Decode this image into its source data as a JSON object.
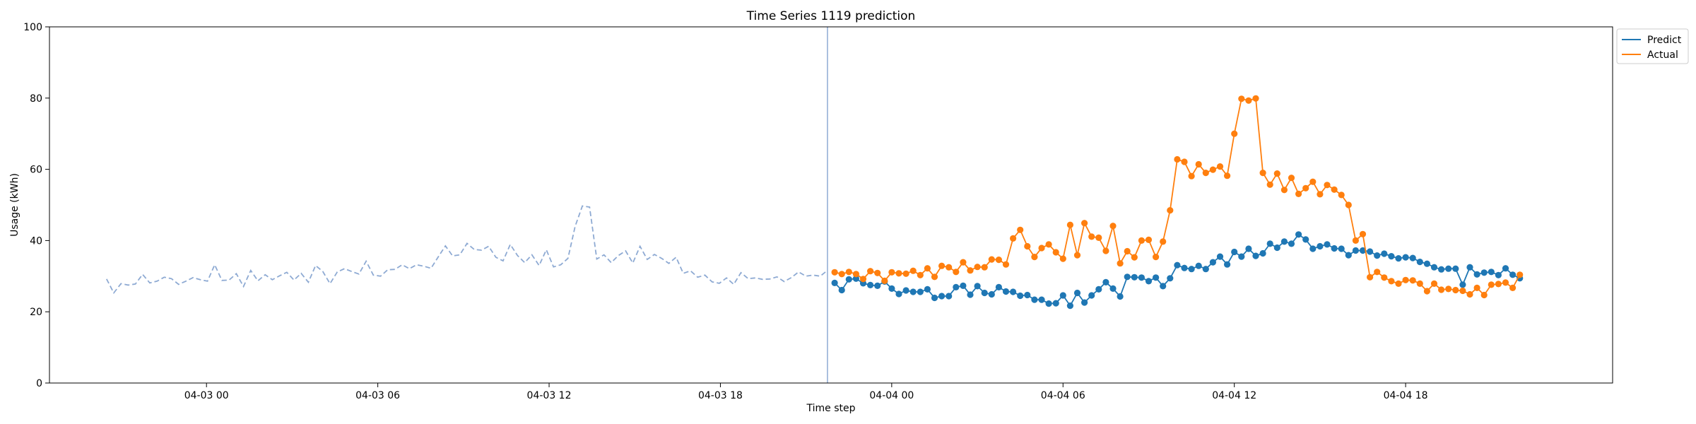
{
  "chart_data": {
    "type": "line",
    "title": "Time Series 1119 prediction",
    "xlabel": "Time step",
    "ylabel": "Usage (kWh)",
    "ylim": [
      0,
      100
    ],
    "yticks": [
      0,
      20,
      40,
      60,
      80,
      100
    ],
    "xtick_labels": [
      "04-03 00",
      "04-03 06",
      "04-03 12",
      "04-03 18",
      "04-04 00",
      "04-04 06",
      "04-04 12",
      "04-04 18"
    ],
    "xtick_times": [
      "2020-04-03T00:00",
      "2020-04-03T06:00",
      "2020-04-03T12:00",
      "2020-04-03T18:00",
      "2020-04-04T00:00",
      "2020-04-04T06:00",
      "2020-04-04T12:00",
      "2020-04-04T18:00"
    ],
    "legend": {
      "position": "outside-top-right"
    },
    "grid": false,
    "forecast_start": "2020-04-03T21:45",
    "history": {
      "start": "2020-04-02T20:30",
      "end": "2020-04-03T21:45",
      "color": "#8eaad3",
      "values": [
        29.2,
        25.3,
        27.9,
        27.5,
        27.8,
        30.5,
        28.1,
        28.6,
        29.7,
        29.3,
        27.7,
        28.6,
        29.6,
        29.0,
        28.6,
        33.2,
        28.8,
        28.9,
        30.7,
        27.1,
        31.6,
        28.7,
        30.4,
        29.0,
        30.1,
        31.1,
        28.9,
        30.8,
        28.3,
        33.0,
        31.3,
        27.9,
        31.2,
        32.1,
        31.3,
        30.6,
        34.2,
        30.3,
        30.0,
        31.8,
        31.9,
        33.2,
        32.1,
        33.2,
        32.8,
        32.2,
        35.4,
        38.5,
        35.7,
        36.0,
        39.2,
        37.5,
        37.3,
        38.4,
        35.3,
        34.3,
        38.9,
        35.8,
        33.8,
        36.0,
        33.0,
        37.4,
        32.6,
        33.2,
        35.0,
        44.0,
        49.7,
        49.4,
        34.8,
        36.0,
        33.8,
        35.8,
        37.1,
        33.7,
        38.4,
        34.7,
        36.1,
        35.0,
        33.6,
        35.3,
        30.8,
        31.5,
        29.7,
        30.3,
        28.4,
        28.0,
        29.5,
        27.7,
        31.0,
        29.3,
        29.5,
        29.1,
        29.2,
        29.8,
        28.5,
        29.6,
        31.2,
        30.0,
        30.3,
        30.0,
        31.6
      ]
    },
    "forecast": {
      "start": "2020-04-03T22:00",
      "step_minutes": 15,
      "series": [
        {
          "name": "Predict",
          "color": "#1f77b4",
          "values": [
            28.1,
            26.1,
            29.1,
            29.3,
            28.0,
            27.5,
            27.3,
            28.5,
            26.5,
            25.0,
            26.0,
            25.6,
            25.6,
            26.3,
            23.9,
            24.4,
            24.4,
            26.9,
            27.3,
            24.8,
            27.2,
            25.3,
            24.9,
            26.9,
            25.7,
            25.6,
            24.5,
            24.7,
            23.4,
            23.4,
            22.3,
            22.4,
            24.6,
            21.7,
            25.3,
            22.6,
            24.6,
            26.3,
            28.3,
            26.5,
            24.3,
            29.8,
            29.7,
            29.6,
            28.6,
            29.6,
            27.2,
            29.4,
            33.1,
            32.3,
            32.0,
            32.9,
            32.0,
            33.9,
            35.5,
            33.3,
            36.8,
            35.5,
            37.7,
            35.7,
            36.4,
            39.1,
            38.0,
            39.7,
            39.1,
            41.7,
            40.3,
            37.7,
            38.4,
            38.9,
            37.8,
            37.7,
            35.9,
            37.2,
            37.2,
            36.9,
            35.8,
            36.3,
            35.6,
            35.0,
            35.3,
            35.1,
            34.0,
            33.5,
            32.5,
            31.9,
            32.1,
            32.1,
            27.6,
            32.5,
            30.5,
            31.0,
            31.2,
            30.3,
            32.2,
            30.4,
            29.4
          ]
        },
        {
          "name": "Actual",
          "color": "#ff7f0e",
          "values": [
            31.1,
            30.6,
            31.2,
            30.6,
            29.2,
            31.4,
            30.9,
            28.7,
            31.1,
            30.8,
            30.7,
            31.5,
            30.3,
            32.2,
            29.8,
            32.9,
            32.5,
            31.2,
            33.9,
            31.6,
            32.6,
            32.5,
            34.7,
            34.6,
            33.3,
            40.6,
            43.0,
            38.4,
            35.4,
            37.9,
            38.9,
            36.7,
            34.9,
            44.4,
            35.9,
            44.9,
            41.1,
            40.8,
            37.1,
            44.1,
            33.6,
            37.0,
            35.3,
            40.0,
            40.2,
            35.4,
            39.7,
            48.5,
            62.8,
            62.1,
            58.1,
            61.4,
            59.0,
            59.9,
            60.8,
            58.2,
            70.0,
            79.8,
            79.3,
            79.9,
            59.0,
            55.7,
            58.8,
            54.2,
            57.6,
            53.1,
            54.7,
            56.5,
            53.0,
            55.6,
            54.3,
            52.8,
            50.0,
            40.0,
            41.8,
            29.7,
            31.2,
            29.6,
            28.6,
            27.9,
            28.9,
            28.8,
            27.9,
            25.8,
            27.9,
            26.2,
            26.4,
            26.1,
            25.9,
            24.9,
            26.7,
            24.7,
            27.6,
            27.8,
            28.2,
            26.7,
            30.4
          ]
        }
      ]
    }
  }
}
